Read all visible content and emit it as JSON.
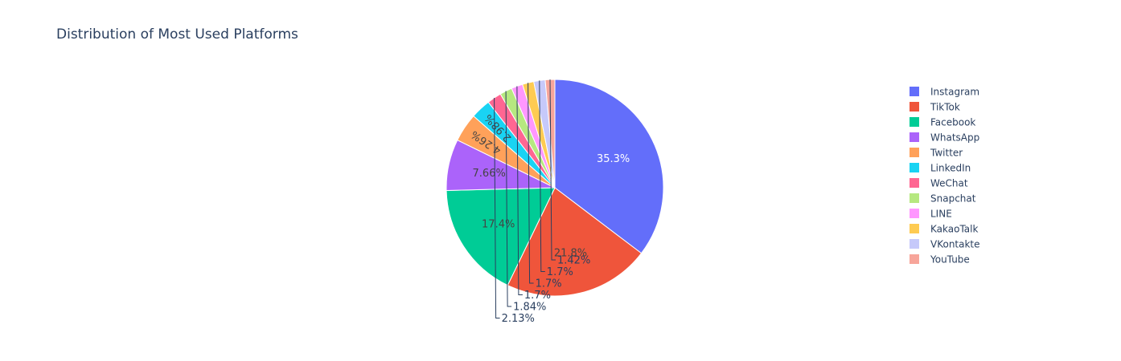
{
  "chart_data": {
    "type": "pie",
    "title": "Distribution of Most Used Platforms",
    "slices": [
      {
        "label": "Instagram",
        "value": 35.3,
        "text": "35.3%",
        "color": "#636efa"
      },
      {
        "label": "TikTok",
        "value": 21.8,
        "text": "21.8%",
        "color": "#EF553B"
      },
      {
        "label": "Facebook",
        "value": 17.4,
        "text": "17.4%",
        "color": "#00cc96"
      },
      {
        "label": "WhatsApp",
        "value": 7.66,
        "text": "7.66%",
        "color": "#ab63fa"
      },
      {
        "label": "Twitter",
        "value": 4.26,
        "text": "4.26%",
        "color": "#FFA15A"
      },
      {
        "label": "LinkedIn",
        "value": 2.98,
        "text": "2.98%",
        "color": "#19d3f3"
      },
      {
        "label": "WeChat",
        "value": 2.13,
        "text": "2.13%",
        "color": "#FF6692"
      },
      {
        "label": "Snapchat",
        "value": 1.84,
        "text": "1.84%",
        "color": "#B6E880"
      },
      {
        "label": "LINE",
        "value": 1.7,
        "text": "1.7%",
        "color": "#FF97FF"
      },
      {
        "label": "KakaoTalk",
        "value": 1.7,
        "text": "1.7%",
        "color": "#FECB52"
      },
      {
        "label": "VKontakte",
        "value": 1.7,
        "text": "1.7%",
        "color": "#c6c9fa"
      },
      {
        "label": "YouTube",
        "value": 1.42,
        "text": "1.42%",
        "color": "#f7a59a"
      }
    ],
    "legend_placement": "right",
    "sort": "descending",
    "direction": "clockwise"
  }
}
